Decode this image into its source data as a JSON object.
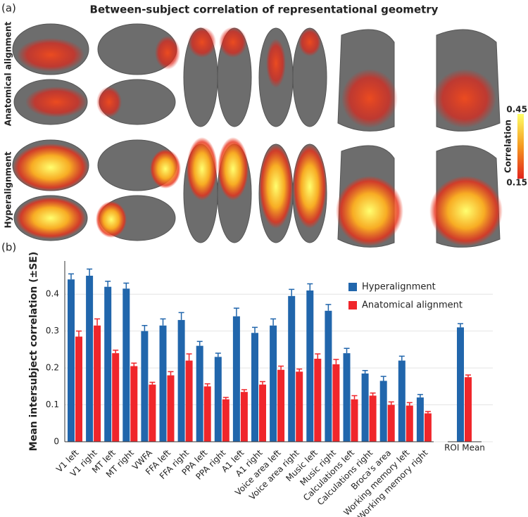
{
  "panel_a": {
    "label": "(a)",
    "title": "Between-subject correlation of representational geometry",
    "row_labels": [
      "Anatomical alignment",
      "Hyperalignment"
    ],
    "colorbar": {
      "label": "Correlation",
      "lim": [
        0.15,
        0.45
      ],
      "ticks": [
        0.15,
        0.45
      ],
      "colors": [
        "#e3231c",
        "#ffff66"
      ]
    }
  },
  "chart_data": {
    "type": "bar",
    "panel_label": "(b)",
    "y_label": "Mean intersubject correlation (±SE)",
    "categories": [
      "V1 left",
      "V1 right",
      "MT left",
      "MT right",
      "VWFA",
      "FFA left",
      "FFA right",
      "PPA left",
      "PPA right",
      "A1 left",
      "A1 right",
      "Voice area left",
      "Voice area right",
      "Music left",
      "Music right",
      "Calculations left",
      "Calculations right",
      "Broca's area",
      "Working memory left",
      "Working memory right",
      "ROI Mean"
    ],
    "category_colors": [
      "#e8282b",
      "#e8282b",
      "#e8282b",
      "#e8282b",
      "#e8282b",
      "#e8282b",
      "#e8282b",
      "#e8282b",
      "#e8282b",
      "#2626c8",
      "#2626c8",
      "#2626c8",
      "#2626c8",
      "#2626c8",
      "#2626c8",
      "#2a8a2a",
      "#2a8a2a",
      "#2a8a2a",
      "#2a8a2a",
      "#2a8a2a",
      "#222222"
    ],
    "series": [
      {
        "name": "Hyperalignment",
        "color": "#2166ac",
        "values": [
          0.44,
          0.45,
          0.42,
          0.415,
          0.3,
          0.315,
          0.33,
          0.26,
          0.23,
          0.34,
          0.295,
          0.315,
          0.395,
          0.41,
          0.355,
          0.24,
          0.185,
          0.165,
          0.22,
          0.12,
          0.31
        ],
        "errors": [
          0.015,
          0.018,
          0.015,
          0.015,
          0.015,
          0.018,
          0.02,
          0.012,
          0.01,
          0.022,
          0.015,
          0.018,
          0.018,
          0.018,
          0.017,
          0.013,
          0.008,
          0.012,
          0.012,
          0.008,
          0.01
        ]
      },
      {
        "name": "Anatomical alignment",
        "color": "#f0262b",
        "values": [
          0.285,
          0.315,
          0.24,
          0.205,
          0.155,
          0.18,
          0.22,
          0.15,
          0.115,
          0.135,
          0.155,
          0.195,
          0.19,
          0.225,
          0.21,
          0.115,
          0.125,
          0.1,
          0.098,
          0.077,
          0.175
        ],
        "errors": [
          0.015,
          0.018,
          0.008,
          0.008,
          0.006,
          0.01,
          0.018,
          0.007,
          0.005,
          0.006,
          0.008,
          0.01,
          0.007,
          0.013,
          0.013,
          0.01,
          0.007,
          0.008,
          0.008,
          0.005,
          0.006
        ]
      }
    ],
    "ylim": [
      0,
      0.49
    ],
    "yticks": [
      0,
      0.1,
      0.2,
      0.3,
      0.4
    ],
    "grid": true,
    "legend": "top-right"
  }
}
